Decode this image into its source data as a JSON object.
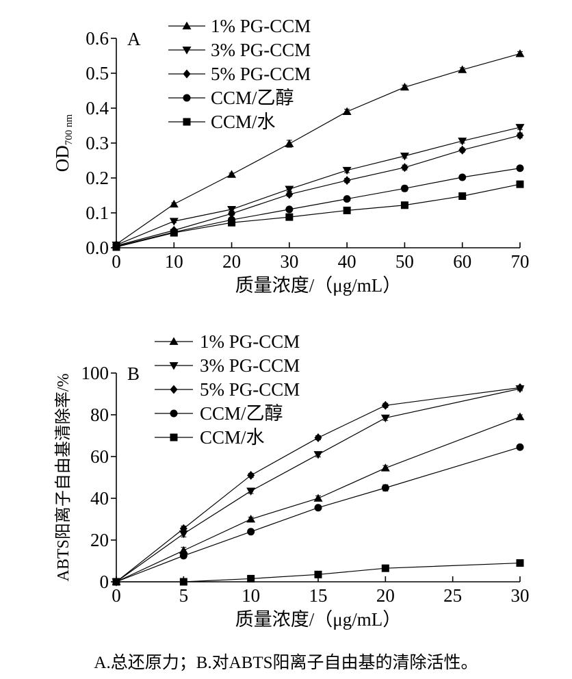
{
  "caption": "A.总还原力；B.对ABTS阳离子自由基的清除活性。",
  "chart_data": [
    {
      "type": "line",
      "panel_label": "A",
      "xlabel": "质量浓度/（μg/mL）",
      "ylabel_main": "OD",
      "ylabel_sub": "700 nm",
      "xlim": [
        0,
        70
      ],
      "ylim": [
        0,
        0.6
      ],
      "x_ticks": [
        0,
        10,
        20,
        30,
        40,
        50,
        60,
        70
      ],
      "x_tick_labels": [
        "0",
        "10",
        "20",
        "30",
        "40",
        "50",
        "60",
        "70"
      ],
      "y_ticks": [
        0,
        0.1,
        0.2,
        0.3,
        0.4,
        0.5,
        0.6
      ],
      "y_tick_labels": [
        "0.0",
        "0.1",
        "0.2",
        "0.3",
        "0.4",
        "0.5",
        "0.6"
      ],
      "grid": false,
      "legend_position": "top-center",
      "series": [
        {
          "name": "1% PG-CCM",
          "marker": "triangle-up",
          "x": [
            0,
            10,
            20,
            30,
            40,
            50,
            60,
            70
          ],
          "values": [
            0.01,
            0.125,
            0.21,
            0.298,
            0.39,
            0.46,
            0.51,
            0.556
          ],
          "errors": [
            0,
            0.004,
            0.004,
            0.01,
            0.007,
            0.006,
            0.006,
            0.006
          ]
        },
        {
          "name": "3% PG-CCM",
          "marker": "triangle-down",
          "x": [
            0,
            10,
            20,
            30,
            40,
            50,
            60,
            70
          ],
          "values": [
            0.008,
            0.076,
            0.11,
            0.168,
            0.222,
            0.263,
            0.306,
            0.345
          ],
          "errors": [
            0,
            0.004,
            0.005,
            0.006,
            0.007,
            0.006,
            0.006,
            0.006
          ]
        },
        {
          "name": "5% PG-CCM",
          "marker": "diamond",
          "x": [
            0,
            10,
            20,
            30,
            40,
            50,
            60,
            70
          ],
          "values": [
            0.006,
            0.05,
            0.098,
            0.153,
            0.193,
            0.23,
            0.28,
            0.322
          ],
          "errors": [
            0,
            0.004,
            0.005,
            0.006,
            0.006,
            0.007,
            0.006,
            0.007
          ]
        },
        {
          "name": "CCM/乙醇",
          "marker": "circle",
          "x": [
            0,
            10,
            20,
            30,
            40,
            50,
            60,
            70
          ],
          "values": [
            0.004,
            0.045,
            0.08,
            0.11,
            0.14,
            0.17,
            0.202,
            0.228
          ],
          "errors": [
            0,
            0.004,
            0.005,
            0.006,
            0.005,
            0.008,
            0.006,
            0.005
          ]
        },
        {
          "name": "CCM/水",
          "marker": "square",
          "x": [
            0,
            10,
            20,
            30,
            40,
            50,
            60,
            70
          ],
          "values": [
            0.002,
            0.043,
            0.072,
            0.088,
            0.107,
            0.122,
            0.148,
            0.182
          ],
          "errors": [
            0,
            0.003,
            0.004,
            0.004,
            0.005,
            0.005,
            0.005,
            0.006
          ]
        }
      ]
    },
    {
      "type": "line",
      "panel_label": "B",
      "xlabel": "质量浓度/（μg/mL）",
      "ylabel": "ABTS阳离子自由基清除率/%",
      "xlim": [
        0,
        30
      ],
      "ylim": [
        0,
        100
      ],
      "x_ticks": [
        0,
        5,
        10,
        15,
        20,
        25,
        30
      ],
      "x_tick_labels": [
        "0",
        "5",
        "10",
        "15",
        "20",
        "25",
        "30"
      ],
      "y_ticks": [
        0,
        20,
        40,
        60,
        80,
        100
      ],
      "y_tick_labels": [
        "0",
        "20",
        "40",
        "60",
        "80",
        "100"
      ],
      "grid": false,
      "legend_position": "top-center",
      "series": [
        {
          "name": "1% PG-CCM",
          "marker": "triangle-up",
          "x": [
            0,
            5,
            10,
            15,
            20,
            30
          ],
          "values": [
            0,
            15,
            30,
            40,
            54.5,
            79
          ],
          "errors": [
            0,
            1.5,
            1,
            1.2,
            1.2,
            1
          ]
        },
        {
          "name": "3% PG-CCM",
          "marker": "triangle-down",
          "x": [
            0,
            5,
            10,
            15,
            20,
            30
          ],
          "values": [
            0,
            23,
            43.5,
            61,
            78.5,
            92.5
          ],
          "errors": [
            0,
            1.5,
            1.2,
            1.2,
            1.2,
            1
          ]
        },
        {
          "name": "5% PG-CCM",
          "marker": "diamond",
          "x": [
            0,
            5,
            10,
            15,
            20,
            30
          ],
          "values": [
            0,
            25.5,
            51,
            69,
            84.5,
            93
          ],
          "errors": [
            0,
            1.2,
            1,
            1,
            1,
            1
          ]
        },
        {
          "name": "CCM/乙醇",
          "marker": "circle",
          "x": [
            0,
            5,
            10,
            15,
            20,
            30
          ],
          "values": [
            0,
            12.5,
            24,
            35.5,
            45,
            64.5
          ],
          "errors": [
            0,
            1.2,
            1,
            1,
            1.5,
            1
          ]
        },
        {
          "name": "CCM/水",
          "marker": "square",
          "x": [
            0,
            5,
            10,
            15,
            20,
            30
          ],
          "values": [
            0,
            0,
            1.5,
            3.5,
            6.5,
            9
          ],
          "errors": [
            0,
            0.5,
            0.8,
            0.8,
            1,
            1
          ]
        }
      ]
    }
  ]
}
